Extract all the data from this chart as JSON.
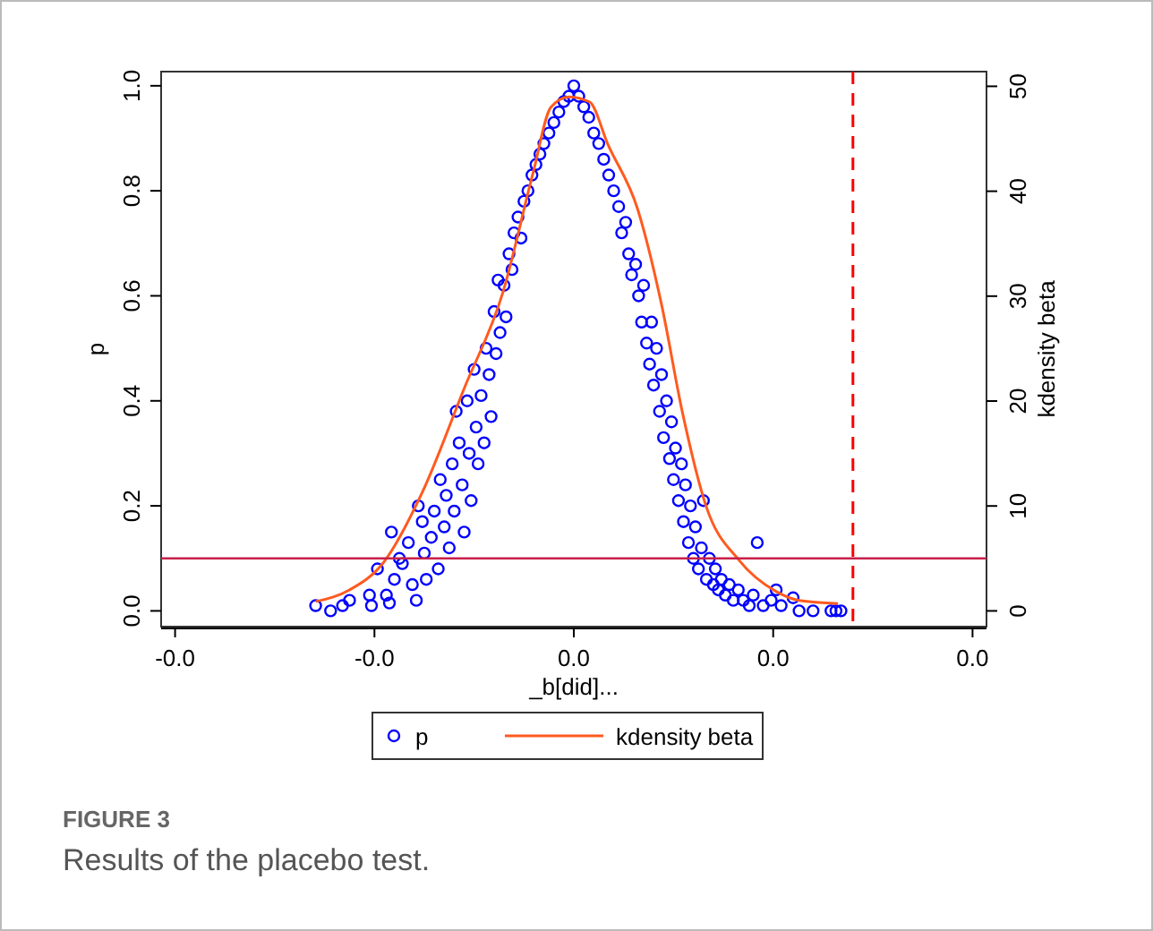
{
  "chart_data": {
    "type": "scatter",
    "xlabel": "_b[did]...",
    "ylabel": "p",
    "y2label": "kdensity beta",
    "xlim": [
      -0.0414,
      0.0414
    ],
    "xticks": [
      {
        "value": -0.04,
        "label": "-0.0"
      },
      {
        "value": -0.02,
        "label": "-0.0"
      },
      {
        "value": 0,
        "label": "0.0"
      },
      {
        "value": 0.02,
        "label": "0.0"
      },
      {
        "value": 0.04,
        "label": "0.0"
      }
    ],
    "ylim": [
      -0.03,
      1.027
    ],
    "yticks": [
      {
        "value": 0,
        "label": "0.0"
      },
      {
        "value": 0.2,
        "label": "0.2"
      },
      {
        "value": 0.4,
        "label": "0.4"
      },
      {
        "value": 0.6,
        "label": "0.6"
      },
      {
        "value": 0.8,
        "label": "0.8"
      },
      {
        "value": 1,
        "label": "1.0"
      }
    ],
    "y2lim": [
      -1.5,
      51.4
    ],
    "y2ticks": [
      0,
      10,
      20,
      30,
      40,
      50
    ],
    "legend": "bottom",
    "series": [
      {
        "name": "p",
        "marker": "circle",
        "color": "#0000ff",
        "x": [
          -0.0259,
          -0.0244,
          -0.0232,
          -0.0225,
          -0.0205,
          -0.0203,
          -0.0197,
          -0.0188,
          -0.0185,
          -0.0183,
          -0.018,
          -0.0175,
          -0.0172,
          -0.0166,
          -0.0162,
          -0.0158,
          -0.0156,
          -0.0152,
          -0.015,
          -0.0148,
          -0.0143,
          -0.014,
          -0.0136,
          -0.0134,
          -0.013,
          -0.0128,
          -0.0125,
          -0.0122,
          -0.012,
          -0.0118,
          -0.0115,
          -0.0112,
          -0.011,
          -0.0107,
          -0.0105,
          -0.0103,
          -0.01,
          -0.0098,
          -0.0096,
          -0.0093,
          -0.009,
          -0.0088,
          -0.0085,
          -0.0083,
          -0.008,
          -0.0078,
          -0.0076,
          -0.0074,
          -0.007,
          -0.0068,
          -0.0065,
          -0.0062,
          -0.006,
          -0.0056,
          -0.0053,
          -0.005,
          -0.0046,
          -0.0042,
          -0.0038,
          -0.0034,
          -0.003,
          -0.0025,
          -0.002,
          -0.0015,
          -0.001,
          -0.0005,
          0,
          0.0005,
          0.001,
          0.0015,
          0.002,
          0.0025,
          0.003,
          0.0035,
          0.004,
          0.0045,
          0.0048,
          0.0052,
          0.0055,
          0.0058,
          0.0062,
          0.0065,
          0.0068,
          0.007,
          0.0073,
          0.0076,
          0.0078,
          0.008,
          0.0083,
          0.0086,
          0.0088,
          0.009,
          0.0093,
          0.0096,
          0.0098,
          0.01,
          0.0102,
          0.0105,
          0.0108,
          0.011,
          0.0112,
          0.0115,
          0.0117,
          0.012,
          0.0122,
          0.0125,
          0.0128,
          0.013,
          0.0133,
          0.0136,
          0.014,
          0.0142,
          0.0145,
          0.0148,
          0.0152,
          0.0156,
          0.016,
          0.0165,
          0.017,
          0.0176,
          0.018,
          0.0184,
          0.019,
          0.0198,
          0.0203,
          0.0208,
          0.022,
          0.0226,
          0.024,
          0.0258,
          0.0263,
          0.0268
        ],
        "values": [
          0.01,
          0,
          0.01,
          0.02,
          0.03,
          0.01,
          0.08,
          0.03,
          0.015,
          0.15,
          0.06,
          0.1,
          0.09,
          0.13,
          0.05,
          0.02,
          0.2,
          0.17,
          0.11,
          0.06,
          0.14,
          0.19,
          0.08,
          0.25,
          0.16,
          0.22,
          0.12,
          0.28,
          0.19,
          0.38,
          0.32,
          0.24,
          0.15,
          0.4,
          0.3,
          0.21,
          0.46,
          0.35,
          0.28,
          0.41,
          0.32,
          0.5,
          0.45,
          0.37,
          0.57,
          0.49,
          0.63,
          0.53,
          0.62,
          0.56,
          0.68,
          0.65,
          0.72,
          0.75,
          0.71,
          0.78,
          0.8,
          0.83,
          0.85,
          0.87,
          0.89,
          0.91,
          0.93,
          0.95,
          0.97,
          0.98,
          1,
          0.98,
          0.96,
          0.94,
          0.91,
          0.89,
          0.86,
          0.83,
          0.8,
          0.77,
          0.72,
          0.74,
          0.68,
          0.64,
          0.66,
          0.6,
          0.55,
          0.62,
          0.51,
          0.47,
          0.55,
          0.43,
          0.5,
          0.38,
          0.45,
          0.33,
          0.4,
          0.29,
          0.36,
          0.25,
          0.31,
          0.21,
          0.28,
          0.17,
          0.24,
          0.13,
          0.2,
          0.1,
          0.16,
          0.08,
          0.12,
          0.21,
          0.06,
          0.1,
          0.05,
          0.08,
          0.04,
          0.06,
          0.03,
          0.05,
          0.02,
          0.04,
          0.02,
          0.01,
          0.03,
          0.13,
          0.01,
          0.02,
          0.04,
          0.01,
          0.025,
          0,
          0,
          0,
          0,
          0
        ]
      },
      {
        "name": "kdensity beta",
        "type": "line",
        "axis": "y2",
        "color": "#ff5a1f",
        "x": [
          -0.0259,
          -0.0225,
          -0.0191,
          -0.0152,
          -0.011,
          -0.0071,
          -0.0041,
          -0.0023,
          -0.0005,
          0.0016,
          0.0034,
          0.0064,
          0.0088,
          0.0109,
          0.0133,
          0.0166,
          0.0202,
          0.0226,
          0.0265
        ],
        "values": [
          0.9,
          2,
          4.6,
          11.3,
          21.2,
          30.4,
          41.7,
          48,
          49,
          48.5,
          44.5,
          38.3,
          29.2,
          18.9,
          9.9,
          4.8,
          1.9,
          1,
          0.7
        ]
      }
    ],
    "ref_lines": [
      {
        "axis": "y",
        "value": 0.1,
        "color": "#c8204a",
        "line_style": "solid"
      },
      {
        "axis": "x",
        "value": 0.028,
        "color": "#ff0000",
        "line_style": "dashed"
      }
    ],
    "annotations": [
      "FIGURE 3",
      "Results of the placebo test."
    ]
  }
}
